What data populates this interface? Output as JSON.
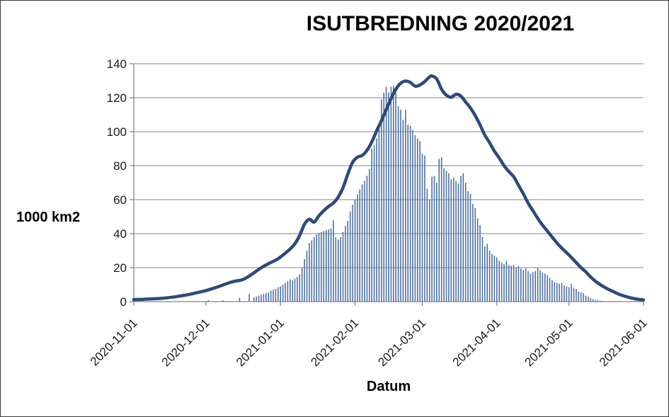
{
  "chart_data": {
    "type": "line",
    "title": "ISUTBREDNING 2020/2021",
    "xlabel": "Datum",
    "ylabel": "1000 km2",
    "ylim": [
      0,
      140
    ],
    "y_ticks": [
      0,
      20,
      40,
      60,
      80,
      100,
      120,
      140
    ],
    "x_tick_labels": [
      "2020-11-01",
      "2020-12-01",
      "2021-01-01",
      "2021-02-01",
      "2021-03-01",
      "2021-04-01",
      "2021-05-01",
      "2021-06-01"
    ],
    "grid": true,
    "legend": "none",
    "series": [
      {
        "name": "line",
        "type": "line",
        "color": "#2c4a7c",
        "points": [
          [
            "2020-11-01",
            1.2
          ],
          [
            "2020-11-04",
            1.3
          ],
          [
            "2020-11-07",
            1.5
          ],
          [
            "2020-11-10",
            1.7
          ],
          [
            "2020-11-13",
            2.0
          ],
          [
            "2020-11-16",
            2.4
          ],
          [
            "2020-11-19",
            3.0
          ],
          [
            "2020-11-22",
            3.7
          ],
          [
            "2020-11-25",
            4.5
          ],
          [
            "2020-11-28",
            5.5
          ],
          [
            "2020-12-01",
            6.5
          ],
          [
            "2020-12-04",
            7.8
          ],
          [
            "2020-12-07",
            9.2
          ],
          [
            "2020-12-10",
            10.8
          ],
          [
            "2020-12-13",
            12.0
          ],
          [
            "2020-12-16",
            12.8
          ],
          [
            "2020-12-19",
            15.0
          ],
          [
            "2020-12-22",
            18.0
          ],
          [
            "2020-12-25",
            20.8
          ],
          [
            "2020-12-28",
            23.0
          ],
          [
            "2020-12-31",
            25.2
          ],
          [
            "2021-01-03",
            28.5
          ],
          [
            "2021-01-05",
            31.0
          ],
          [
            "2021-01-07",
            34.0
          ],
          [
            "2021-01-09",
            39.0
          ],
          [
            "2021-01-11",
            45.5
          ],
          [
            "2021-01-13",
            48.5
          ],
          [
            "2021-01-15",
            46.8
          ],
          [
            "2021-01-17",
            50.5
          ],
          [
            "2021-01-19",
            53.5
          ],
          [
            "2021-01-21",
            56.0
          ],
          [
            "2021-01-23",
            58.0
          ],
          [
            "2021-01-25",
            61.5
          ],
          [
            "2021-01-27",
            67.0
          ],
          [
            "2021-01-29",
            75.0
          ],
          [
            "2021-01-31",
            82.0
          ],
          [
            "2021-02-02",
            85.0
          ],
          [
            "2021-02-04",
            86.0
          ],
          [
            "2021-02-06",
            89.0
          ],
          [
            "2021-02-08",
            94.0
          ],
          [
            "2021-02-10",
            100.5
          ],
          [
            "2021-02-12",
            106.5
          ],
          [
            "2021-02-14",
            113.0
          ],
          [
            "2021-02-16",
            119.5
          ],
          [
            "2021-02-18",
            125.0
          ],
          [
            "2021-02-20",
            128.5
          ],
          [
            "2021-02-22",
            129.8
          ],
          [
            "2021-02-24",
            129.0
          ],
          [
            "2021-02-26",
            126.8
          ],
          [
            "2021-02-28",
            127.5
          ],
          [
            "2021-03-02",
            129.5
          ],
          [
            "2021-03-04",
            132.2
          ],
          [
            "2021-03-05",
            132.8
          ],
          [
            "2021-03-07",
            131.0
          ],
          [
            "2021-03-09",
            125.0
          ],
          [
            "2021-03-11",
            121.5
          ],
          [
            "2021-03-13",
            120.3
          ],
          [
            "2021-03-15",
            122.0
          ],
          [
            "2021-03-17",
            121.0
          ],
          [
            "2021-03-19",
            117.5
          ],
          [
            "2021-03-21",
            114.0
          ],
          [
            "2021-03-23",
            109.5
          ],
          [
            "2021-03-25",
            104.0
          ],
          [
            "2021-03-27",
            98.0
          ],
          [
            "2021-03-29",
            93.5
          ],
          [
            "2021-03-31",
            88.5
          ],
          [
            "2021-04-02",
            84.5
          ],
          [
            "2021-04-04",
            80.0
          ],
          [
            "2021-04-06",
            76.5
          ],
          [
            "2021-04-08",
            73.5
          ],
          [
            "2021-04-10",
            68.5
          ],
          [
            "2021-04-12",
            63.5
          ],
          [
            "2021-04-14",
            58.0
          ],
          [
            "2021-04-16",
            53.5
          ],
          [
            "2021-04-18",
            49.0
          ],
          [
            "2021-04-20",
            45.0
          ],
          [
            "2021-04-22",
            41.5
          ],
          [
            "2021-04-24",
            38.0
          ],
          [
            "2021-04-26",
            34.5
          ],
          [
            "2021-04-28",
            31.5
          ],
          [
            "2021-04-30",
            28.8
          ],
          [
            "2021-05-02",
            26.0
          ],
          [
            "2021-05-04",
            23.0
          ],
          [
            "2021-05-06",
            20.0
          ],
          [
            "2021-05-08",
            17.5
          ],
          [
            "2021-05-10",
            14.5
          ],
          [
            "2021-05-12",
            12.0
          ],
          [
            "2021-05-14",
            10.0
          ],
          [
            "2021-05-16",
            8.3
          ],
          [
            "2021-05-18",
            6.8
          ],
          [
            "2021-05-20",
            5.5
          ],
          [
            "2021-05-22",
            4.2
          ],
          [
            "2021-05-24",
            3.3
          ],
          [
            "2021-05-26",
            2.4
          ],
          [
            "2021-05-28",
            1.8
          ],
          [
            "2021-05-30",
            1.3
          ],
          [
            "2021-06-01",
            1.0
          ]
        ]
      },
      {
        "name": "bars",
        "type": "bar",
        "color": "#4e72a3",
        "sparse_points": [
          [
            "2020-12-02",
            0.8
          ],
          [
            "2020-12-08",
            0.8
          ],
          [
            "2020-12-15",
            2.2
          ],
          [
            "2020-12-19",
            4.5
          ]
        ],
        "daily_start": "2020-12-21",
        "daily_values": [
          2.5,
          3,
          3.5,
          4,
          4.5,
          5,
          5.5,
          6.5,
          7,
          7.5,
          8.5,
          9,
          10,
          11,
          12,
          13,
          12.5,
          13.5,
          14.5,
          16,
          20,
          25,
          30,
          34.5,
          36,
          38,
          39.5,
          40.5,
          41,
          41.5,
          42,
          42.5,
          43,
          48,
          38,
          36.5,
          38,
          41,
          44.5,
          47.5,
          53,
          57,
          60,
          63,
          66,
          69,
          71,
          74,
          78,
          90,
          92,
          96,
          102,
          119,
          123,
          126.5,
          123,
          126.5,
          127,
          123,
          115,
          113,
          107,
          113,
          104,
          103.5,
          101,
          98,
          96,
          94.5,
          87,
          86,
          66.5,
          60,
          73.5,
          74,
          70,
          84,
          85,
          78.5,
          77,
          75.5,
          72,
          73,
          71,
          69.5,
          74,
          75.5,
          70,
          65,
          63.5,
          57.5,
          55,
          49,
          45,
          38,
          32.5,
          34,
          30,
          28,
          27,
          26,
          24,
          23,
          22,
          24,
          21.5,
          21,
          21.5,
          20,
          21,
          19.5,
          18.5,
          19.5,
          18,
          16.5,
          17.5,
          18,
          20,
          18.5,
          17,
          16.5,
          15.5,
          14,
          12.5,
          11.5,
          11,
          10.5,
          11,
          9.5,
          9,
          8.5,
          10.5,
          8,
          7.5,
          6,
          5.5,
          5,
          3.5,
          3,
          2,
          1.5,
          1,
          0.8,
          0.5,
          0.4
        ]
      }
    ]
  },
  "colors": {
    "background": "#ffffff",
    "border": "#3a3a3a",
    "grid": "#858585",
    "axis": "#808080",
    "text": "#1a1a1a",
    "line": "#2c4a7c",
    "bars": "#4e72a3"
  }
}
